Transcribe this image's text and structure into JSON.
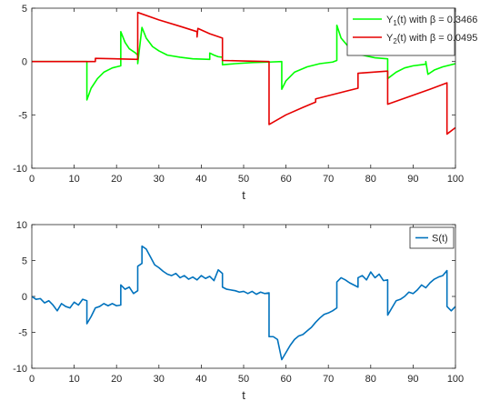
{
  "chart_data": [
    {
      "type": "line",
      "xlabel": "t",
      "ylabel": "",
      "xlim": [
        0,
        100
      ],
      "ylim": [
        -10,
        5
      ],
      "xticks": [
        0,
        10,
        20,
        30,
        40,
        50,
        60,
        70,
        80,
        90,
        100
      ],
      "yticks": [
        -10,
        -5,
        0,
        5
      ],
      "legend_position": "top-right",
      "series": [
        {
          "label_main": "Y",
          "label_sub": "1",
          "label_rest": "(t) with β = 0.3466",
          "color": "#00ff00",
          "points": [
            [
              0,
              0
            ],
            [
              13,
              0
            ],
            [
              13,
              -3.6
            ],
            [
              14,
              -2.5
            ],
            [
              15.5,
              -1.6
            ],
            [
              17,
              -1.0
            ],
            [
              19,
              -0.6
            ],
            [
              21,
              -0.4
            ],
            [
              21,
              2.8
            ],
            [
              22,
              1.8
            ],
            [
              23,
              1.2
            ],
            [
              24.5,
              0.8
            ],
            [
              25,
              0.6
            ],
            [
              25,
              -0.2
            ],
            [
              26,
              3.2
            ],
            [
              27,
              2.2
            ],
            [
              28.5,
              1.4
            ],
            [
              30,
              1.0
            ],
            [
              32,
              0.6
            ],
            [
              35,
              0.4
            ],
            [
              38,
              0.25
            ],
            [
              42,
              0.2
            ],
            [
              42,
              0.8
            ],
            [
              43,
              0.6
            ],
            [
              44,
              0.45
            ],
            [
              45,
              0.4
            ],
            [
              45,
              -0.3
            ],
            [
              48,
              -0.2
            ],
            [
              52,
              -0.1
            ],
            [
              56,
              -0.05
            ],
            [
              59,
              0
            ],
            [
              59,
              -2.6
            ],
            [
              60,
              -1.8
            ],
            [
              62,
              -1.0
            ],
            [
              65,
              -0.5
            ],
            [
              68,
              -0.2
            ],
            [
              71,
              -0.05
            ],
            [
              72,
              0.1
            ],
            [
              72,
              3.4
            ],
            [
              73,
              2.2
            ],
            [
              74.5,
              1.5
            ],
            [
              76,
              1.0
            ],
            [
              78,
              0.6
            ],
            [
              81,
              0.35
            ],
            [
              84,
              0.25
            ],
            [
              84,
              -1.6
            ],
            [
              86,
              -1.0
            ],
            [
              88,
              -0.6
            ],
            [
              90,
              -0.4
            ],
            [
              92,
              -0.3
            ],
            [
              93,
              -0.25
            ],
            [
              93,
              0
            ],
            [
              93.5,
              -1.2
            ],
            [
              95,
              -0.8
            ],
            [
              97,
              -0.5
            ],
            [
              100,
              -0.2
            ]
          ]
        },
        {
          "label_main": "Y",
          "label_sub": "2",
          "label_rest": "(t) with β = 0.0495",
          "color": "#e60000",
          "points": [
            [
              0,
              0
            ],
            [
              15,
              0
            ],
            [
              15,
              0.3
            ],
            [
              25,
              0.2
            ],
            [
              25,
              4.6
            ],
            [
              30,
              3.9
            ],
            [
              35,
              3.3
            ],
            [
              39,
              2.8
            ],
            [
              39,
              2.3
            ],
            [
              39.2,
              3.1
            ],
            [
              42,
              2.6
            ],
            [
              45,
              2.2
            ],
            [
              45,
              0.1
            ],
            [
              50,
              0.05
            ],
            [
              56,
              0
            ],
            [
              56,
              -5.9
            ],
            [
              60,
              -5.0
            ],
            [
              64,
              -4.3
            ],
            [
              67,
              -3.8
            ],
            [
              67,
              -3.5
            ],
            [
              72,
              -3.0
            ],
            [
              77,
              -2.5
            ],
            [
              77,
              -1.1
            ],
            [
              84,
              -0.9
            ],
            [
              84,
              -4.0
            ],
            [
              89,
              -3.3
            ],
            [
              94,
              -2.6
            ],
            [
              98,
              -2.0
            ],
            [
              98,
              -6.8
            ],
            [
              100,
              -6.2
            ]
          ]
        }
      ]
    },
    {
      "type": "line",
      "xlabel": "t",
      "ylabel": "",
      "xlim": [
        0,
        100
      ],
      "ylim": [
        -10,
        10
      ],
      "xticks": [
        0,
        10,
        20,
        30,
        40,
        50,
        60,
        70,
        80,
        90,
        100
      ],
      "yticks": [
        -10,
        -5,
        0,
        5,
        10
      ],
      "legend_position": "top-right",
      "series": [
        {
          "label_main": "S(t)",
          "label_sub": "",
          "label_rest": "",
          "color": "#0072bd",
          "points": [
            [
              0,
              0
            ],
            [
              1,
              -0.4
            ],
            [
              2,
              -0.3
            ],
            [
              3,
              -0.9
            ],
            [
              4,
              -0.6
            ],
            [
              5,
              -1.2
            ],
            [
              6,
              -2.0
            ],
            [
              7,
              -1.0
            ],
            [
              8,
              -1.4
            ],
            [
              9,
              -1.6
            ],
            [
              10,
              -0.8
            ],
            [
              11,
              -1.2
            ],
            [
              12,
              -0.4
            ],
            [
              13,
              -0.6
            ],
            [
              13,
              -3.8
            ],
            [
              14,
              -2.8
            ],
            [
              15,
              -1.6
            ],
            [
              16,
              -1.4
            ],
            [
              17,
              -1.0
            ],
            [
              18,
              -1.3
            ],
            [
              19,
              -1.0
            ],
            [
              20,
              -1.3
            ],
            [
              21,
              -1.2
            ],
            [
              21,
              1.6
            ],
            [
              22,
              1.0
            ],
            [
              23,
              1.3
            ],
            [
              24,
              0.4
            ],
            [
              25,
              0.8
            ],
            [
              25,
              4.2
            ],
            [
              26,
              4.6
            ],
            [
              26,
              7.0
            ],
            [
              27,
              6.6
            ],
            [
              28,
              5.5
            ],
            [
              29,
              4.4
            ],
            [
              30,
              4.0
            ],
            [
              31,
              3.5
            ],
            [
              32,
              3.1
            ],
            [
              33,
              2.9
            ],
            [
              34,
              3.2
            ],
            [
              35,
              2.6
            ],
            [
              36,
              2.9
            ],
            [
              37,
              2.4
            ],
            [
              38,
              2.7
            ],
            [
              39,
              2.3
            ],
            [
              40,
              2.9
            ],
            [
              41,
              2.5
            ],
            [
              42,
              2.8
            ],
            [
              43,
              2.2
            ],
            [
              44,
              3.7
            ],
            [
              45,
              3.2
            ],
            [
              45,
              1.3
            ],
            [
              46,
              1.0
            ],
            [
              47,
              0.9
            ],
            [
              48,
              0.8
            ],
            [
              49,
              0.6
            ],
            [
              50,
              0.7
            ],
            [
              51,
              0.4
            ],
            [
              52,
              0.7
            ],
            [
              53,
              0.3
            ],
            [
              54,
              0.6
            ],
            [
              55,
              0.4
            ],
            [
              56,
              0.5
            ],
            [
              56,
              -5.6
            ],
            [
              57,
              -5.6
            ],
            [
              58,
              -6.0
            ],
            [
              59,
              -8.8
            ],
            [
              60,
              -7.8
            ],
            [
              61,
              -6.8
            ],
            [
              62,
              -6.0
            ],
            [
              63,
              -5.5
            ],
            [
              64,
              -5.3
            ],
            [
              65,
              -4.8
            ],
            [
              66,
              -4.3
            ],
            [
              67,
              -3.6
            ],
            [
              68,
              -3.0
            ],
            [
              69,
              -2.5
            ],
            [
              70,
              -2.3
            ],
            [
              71,
              -2.0
            ],
            [
              72,
              -1.6
            ],
            [
              72,
              2.0
            ],
            [
              73,
              2.6
            ],
            [
              74,
              2.3
            ],
            [
              75,
              1.9
            ],
            [
              76,
              1.6
            ],
            [
              77,
              1.3
            ],
            [
              77,
              2.6
            ],
            [
              78,
              2.9
            ],
            [
              79,
              2.3
            ],
            [
              80,
              3.4
            ],
            [
              81,
              2.6
            ],
            [
              82,
              3.1
            ],
            [
              83,
              2.2
            ],
            [
              84,
              2.3
            ],
            [
              84,
              -2.6
            ],
            [
              85,
              -1.6
            ],
            [
              86,
              -0.6
            ],
            [
              87,
              -0.4
            ],
            [
              88,
              0
            ],
            [
              89,
              0.6
            ],
            [
              90,
              0.4
            ],
            [
              91,
              0.9
            ],
            [
              92,
              1.6
            ],
            [
              93,
              1.2
            ],
            [
              94,
              1.9
            ],
            [
              95,
              2.4
            ],
            [
              96,
              2.7
            ],
            [
              97,
              2.9
            ],
            [
              98,
              3.6
            ],
            [
              98,
              -1.4
            ],
            [
              99,
              -2.0
            ],
            [
              100,
              -1.4
            ]
          ]
        }
      ]
    }
  ]
}
